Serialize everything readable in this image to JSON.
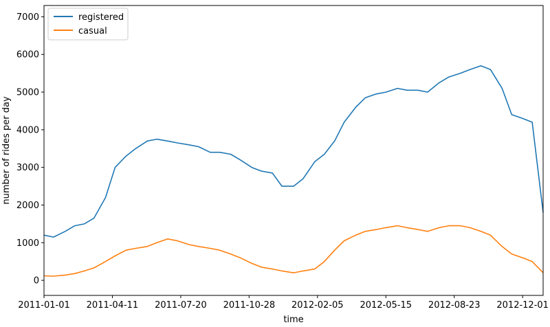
{
  "chart_data": {
    "type": "line",
    "xlabel": "time",
    "ylabel": "number of rides per day",
    "x_ticks": [
      "2011-01-01",
      "2011-04-11",
      "2011-07-20",
      "2011-10-28",
      "2012-02-05",
      "2012-05-15",
      "2012-08-23",
      "2012-12-01"
    ],
    "y_ticks": [
      0,
      1000,
      2000,
      3000,
      4000,
      5000,
      6000,
      7000
    ],
    "xlim": [
      "2011-01-01",
      "2012-12-31"
    ],
    "ylim": [
      -400,
      7300
    ],
    "legend_position": "top-left",
    "grid": false,
    "series": [
      {
        "name": "registered",
        "color": "#1f77b4",
        "x": [
          "2011-01-01",
          "2011-01-15",
          "2011-02-01",
          "2011-02-15",
          "2011-03-01",
          "2011-03-15",
          "2011-04-01",
          "2011-04-15",
          "2011-05-01",
          "2011-05-15",
          "2011-06-01",
          "2011-06-15",
          "2011-07-01",
          "2011-07-15",
          "2011-08-01",
          "2011-08-15",
          "2011-09-01",
          "2011-09-15",
          "2011-10-01",
          "2011-10-15",
          "2011-11-01",
          "2011-11-15",
          "2011-12-01",
          "2011-12-15",
          "2012-01-01",
          "2012-01-15",
          "2012-02-01",
          "2012-02-15",
          "2012-03-01",
          "2012-03-15",
          "2012-04-01",
          "2012-04-15",
          "2012-05-01",
          "2012-05-15",
          "2012-06-01",
          "2012-06-15",
          "2012-07-01",
          "2012-07-15",
          "2012-08-01",
          "2012-08-15",
          "2012-09-01",
          "2012-09-15",
          "2012-10-01",
          "2012-10-15",
          "2012-11-01",
          "2012-11-15",
          "2012-12-01",
          "2012-12-15",
          "2012-12-31"
        ],
        "values": [
          1200,
          1150,
          1300,
          1450,
          1500,
          1650,
          2200,
          3000,
          3300,
          3500,
          3700,
          3750,
          3700,
          3650,
          3600,
          3550,
          3400,
          3400,
          3350,
          3200,
          3000,
          2900,
          2850,
          2500,
          2500,
          2700,
          3150,
          3350,
          3700,
          4200,
          4600,
          4850,
          4950,
          5000,
          5100,
          5050,
          5050,
          5000,
          5250,
          5400,
          5500,
          5600,
          5700,
          5600,
          5100,
          4400,
          4300,
          4200,
          1800
        ]
      },
      {
        "name": "casual",
        "color": "#ff7f0e",
        "x": [
          "2011-01-01",
          "2011-01-15",
          "2011-02-01",
          "2011-02-15",
          "2011-03-01",
          "2011-03-15",
          "2011-04-01",
          "2011-04-15",
          "2011-05-01",
          "2011-05-15",
          "2011-06-01",
          "2011-06-15",
          "2011-07-01",
          "2011-07-15",
          "2011-08-01",
          "2011-08-15",
          "2011-09-01",
          "2011-09-15",
          "2011-10-01",
          "2011-10-15",
          "2011-11-01",
          "2011-11-15",
          "2011-12-01",
          "2011-12-15",
          "2012-01-01",
          "2012-01-15",
          "2012-02-01",
          "2012-02-15",
          "2012-03-01",
          "2012-03-15",
          "2012-04-01",
          "2012-04-15",
          "2012-05-01",
          "2012-05-15",
          "2012-06-01",
          "2012-06-15",
          "2012-07-01",
          "2012-07-15",
          "2012-08-01",
          "2012-08-15",
          "2012-09-01",
          "2012-09-15",
          "2012-10-01",
          "2012-10-15",
          "2012-11-01",
          "2012-11-15",
          "2012-12-01",
          "2012-12-15",
          "2012-12-31"
        ],
        "values": [
          120,
          110,
          140,
          180,
          250,
          330,
          500,
          650,
          800,
          850,
          900,
          1000,
          1100,
          1050,
          950,
          900,
          850,
          800,
          700,
          600,
          450,
          350,
          300,
          250,
          200,
          250,
          300,
          500,
          800,
          1050,
          1200,
          1300,
          1350,
          1400,
          1450,
          1400,
          1350,
          1300,
          1400,
          1450,
          1450,
          1400,
          1300,
          1200,
          900,
          700,
          600,
          500,
          200
        ]
      }
    ]
  }
}
